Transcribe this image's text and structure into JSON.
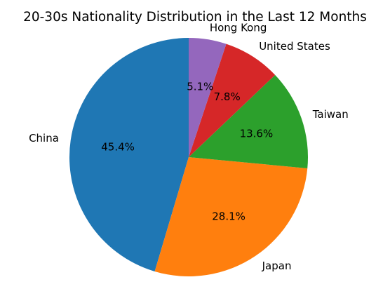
{
  "chart_data": {
    "type": "pie",
    "title": "20-30s Nationality Distribution in the Last 12 Months",
    "categories": [
      "China",
      "Japan",
      "Taiwan",
      "United States",
      "Hong Kong"
    ],
    "values": [
      45.4,
      28.1,
      13.6,
      7.8,
      5.1
    ],
    "value_labels": [
      "45.4%",
      "28.1%",
      "13.6%",
      "7.8%",
      "5.1%"
    ],
    "colors": [
      "#1f77b4",
      "#ff7f0e",
      "#2ca02c",
      "#d62728",
      "#9467bd"
    ],
    "start_angle_deg": 90,
    "direction": "counterclockwise",
    "legend": "none"
  }
}
